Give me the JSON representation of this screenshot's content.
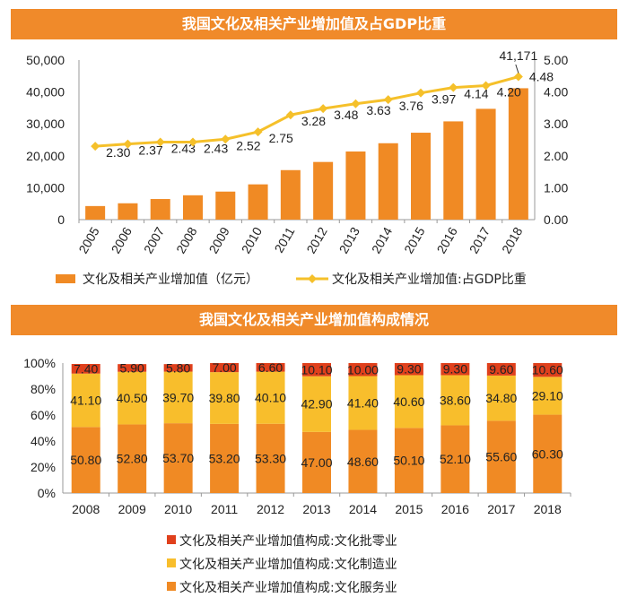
{
  "chart_data": [
    {
      "type": "bar+line",
      "title": "我国文化及相关产业增加值及占GDP比重",
      "categories": [
        "2005",
        "2006",
        "2007",
        "2008",
        "2009",
        "2010",
        "2011",
        "2012",
        "2013",
        "2014",
        "2015",
        "2016",
        "2017",
        "2018"
      ],
      "series": [
        {
          "name": "文化及相关产业增加值（亿元）",
          "type": "bar",
          "axis": "left",
          "color": "#f08a24",
          "values": [
            4253,
            5123,
            6455,
            7630,
            8786,
            11052,
            15516,
            18071,
            21351,
            23940,
            27235,
            30785,
            34722,
            41171
          ],
          "data_labels": {
            "13": "41,171"
          }
        },
        {
          "name": "文化及相关产业增加值:占GDP比重",
          "type": "line",
          "axis": "right",
          "color": "#f5c02a",
          "values": [
            2.3,
            2.37,
            2.43,
            2.43,
            2.52,
            2.75,
            3.28,
            3.48,
            3.63,
            3.76,
            3.97,
            4.14,
            4.2,
            4.48
          ],
          "labels": [
            "2.30",
            "2.37",
            "2.43",
            "2.43",
            "2.52",
            "2.75",
            "3.28",
            "3.48",
            "3.63",
            "3.76",
            "3.97",
            "4.14",
            "4.20",
            "4.48"
          ]
        }
      ],
      "ylim_left": [
        0,
        50000
      ],
      "yticks_left": [
        "0",
        "10,000",
        "20,000",
        "30,000",
        "40,000",
        "50,000"
      ],
      "ylim_right": [
        0,
        5
      ],
      "yticks_right": [
        "0.00",
        "1.00",
        "2.00",
        "3.00",
        "4.00",
        "5.00"
      ],
      "legend": "bottom",
      "grid": false
    },
    {
      "type": "stacked-bar",
      "title": "我国文化及相关产业增加值构成情况",
      "categories": [
        "2008",
        "2009",
        "2010",
        "2011",
        "2012",
        "2013",
        "2014",
        "2015",
        "2016",
        "2017",
        "2018"
      ],
      "series": [
        {
          "name": "文化及相关产业增加值构成:文化服务业",
          "color": "#f08a24",
          "values": [
            "50.80",
            "52.80",
            "53.70",
            "53.20",
            "53.30",
            "47.00",
            "48.60",
            "50.10",
            "52.10",
            "55.60",
            "60.30"
          ]
        },
        {
          "name": "文化及相关产业增加值构成:文化制造业",
          "color": "#f8be2c",
          "values": [
            "41.10",
            "40.50",
            "39.70",
            "39.80",
            "40.10",
            "42.90",
            "41.40",
            "40.60",
            "38.60",
            "34.80",
            "29.10"
          ]
        },
        {
          "name": "文化及相关产业增加值构成:文化批零业",
          "color": "#e0401c",
          "values": [
            "7.40",
            "5.90",
            "5.80",
            "7.00",
            "6.60",
            "10.10",
            "10.00",
            "9.30",
            "9.30",
            "9.60",
            "10.60"
          ]
        }
      ],
      "ylim": [
        0,
        100
      ],
      "yticks": [
        "0%",
        "20%",
        "40%",
        "60%",
        "80%",
        "100%"
      ],
      "legend": "bottom",
      "grid": false
    }
  ]
}
